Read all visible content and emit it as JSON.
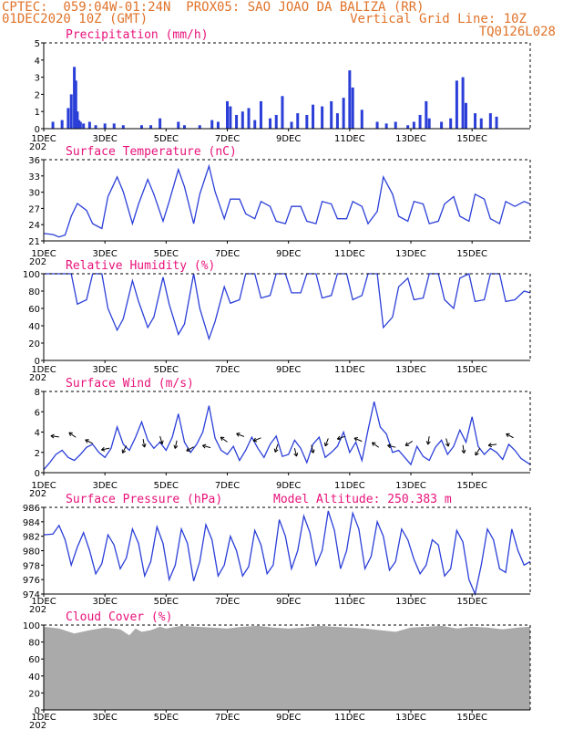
{
  "header": {
    "line1": "CPTEC:  059:04W-01:24N  PROX05: SAO JOAO DA BALIZA (RR)",
    "line2": "01DEC2020 10Z (GMT)",
    "grid_note": "Vertical Grid Line: 10Z",
    "code": "TQ0126L028"
  },
  "x_axis": {
    "days": 15.9,
    "ticks": [
      {
        "day": 0,
        "label": "1DEC"
      },
      {
        "day": 2,
        "label": "3DEC"
      },
      {
        "day": 4,
        "label": "5DEC"
      },
      {
        "day": 6,
        "label": "7DEC"
      },
      {
        "day": 8,
        "label": "9DEC"
      },
      {
        "day": 10,
        "label": "11DEC"
      },
      {
        "day": 12,
        "label": "13DEC"
      },
      {
        "day": 14,
        "label": "15DEC"
      }
    ],
    "year_fragment": "202"
  },
  "panels": {
    "precip": {
      "title": "Precipitation (mm/h)",
      "yticks": [
        "0",
        "1",
        "2",
        "3",
        "4",
        "5"
      ]
    },
    "temp": {
      "title": "Surface Temperature (nC)",
      "yticks": [
        "21",
        "24",
        "27",
        "30",
        "33",
        "36"
      ]
    },
    "rh": {
      "title": "Relative Humidity (%)",
      "yticks": [
        "0",
        "20",
        "40",
        "60",
        "80",
        "100"
      ]
    },
    "wind": {
      "title": "Surface Wind (m/s)",
      "yticks": [
        "0",
        "2",
        "4",
        "6",
        "8"
      ]
    },
    "pres": {
      "title": "Surface Pressure (hPa)",
      "altitude": "Model Altitude: 250.383 m",
      "yticks": [
        "974",
        "976",
        "978",
        "980",
        "982",
        "984",
        "986"
      ]
    },
    "cloud": {
      "title": "Cloud Cover (%)",
      "yticks": [
        "0",
        "20",
        "40",
        "60",
        "80",
        "100"
      ]
    }
  },
  "chart_data": [
    {
      "type": "bar",
      "title": "Precipitation (mm/h)",
      "ylim": [
        0,
        5
      ],
      "x_days": [
        0.3,
        0.6,
        0.8,
        0.9,
        1.0,
        1.05,
        1.1,
        1.15,
        1.2,
        1.3,
        1.5,
        1.7,
        2.0,
        2.3,
        2.6,
        3.2,
        3.5,
        3.8,
        4.4,
        4.6,
        5.1,
        5.5,
        5.7,
        6.0,
        6.1,
        6.3,
        6.5,
        6.7,
        6.9,
        7.1,
        7.4,
        7.6,
        7.8,
        8.1,
        8.3,
        8.6,
        8.8,
        9.1,
        9.4,
        9.6,
        9.8,
        10.0,
        10.1,
        10.4,
        10.9,
        11.2,
        11.5,
        11.9,
        12.1,
        12.3,
        12.5,
        12.6,
        13.0,
        13.3,
        13.5,
        13.7,
        13.8,
        14.1,
        14.3,
        14.6,
        14.8
      ],
      "values": [
        0.4,
        0.5,
        1.2,
        2.0,
        3.6,
        2.8,
        1.0,
        0.5,
        0.4,
        0.3,
        0.4,
        0.2,
        0.3,
        0.3,
        0.2,
        0.2,
        0.2,
        0.6,
        0.4,
        0.2,
        0.2,
        0.5,
        0.4,
        1.6,
        1.3,
        0.8,
        1.0,
        1.2,
        0.5,
        1.6,
        0.6,
        0.8,
        1.9,
        0.4,
        0.9,
        0.8,
        1.4,
        1.3,
        1.6,
        0.9,
        1.8,
        3.4,
        2.4,
        1.1,
        0.4,
        0.3,
        0.4,
        0.2,
        0.4,
        0.8,
        1.6,
        0.6,
        0.4,
        0.6,
        2.8,
        3.0,
        1.5,
        0.9,
        0.6,
        0.9,
        0.7
      ]
    },
    {
      "type": "line",
      "title": "Surface Temperature (nC)",
      "ylim": [
        20,
        36.5
      ],
      "x_days": [
        0,
        0.3,
        0.5,
        0.7,
        0.9,
        1.1,
        1.4,
        1.6,
        1.9,
        2.1,
        2.4,
        2.6,
        2.9,
        3.1,
        3.4,
        3.6,
        3.9,
        4.1,
        4.4,
        4.6,
        4.9,
        5.1,
        5.4,
        5.6,
        5.9,
        6.1,
        6.4,
        6.6,
        6.9,
        7.1,
        7.4,
        7.6,
        7.9,
        8.1,
        8.4,
        8.6,
        8.9,
        9.1,
        9.4,
        9.6,
        9.9,
        10.1,
        10.4,
        10.6,
        10.9,
        11.1,
        11.4,
        11.6,
        11.9,
        12.1,
        12.4,
        12.6,
        12.9,
        13.1,
        13.4,
        13.6,
        13.9,
        14.1,
        14.4,
        14.6,
        14.9,
        15.1,
        15.4,
        15.7,
        15.9
      ],
      "values": [
        21.5,
        21.3,
        20.8,
        21.2,
        25.0,
        27.6,
        26.2,
        23.5,
        22.5,
        29.0,
        33.0,
        30.0,
        23.5,
        27.5,
        32.5,
        29.5,
        24.0,
        28.0,
        34.5,
        31.0,
        23.5,
        29.5,
        35.2,
        30.0,
        24.5,
        28.5,
        28.5,
        25.5,
        24.5,
        28.0,
        27.0,
        24.0,
        23.5,
        27.0,
        27.0,
        24.0,
        23.5,
        28.0,
        27.5,
        24.5,
        24.5,
        28.0,
        27.0,
        23.5,
        26.0,
        33.0,
        29.5,
        25.0,
        24.0,
        28.0,
        27.5,
        23.5,
        24.0,
        27.5,
        29.0,
        25.0,
        24.0,
        29.5,
        28.5,
        24.5,
        23.5,
        28.0,
        27.0,
        28.0,
        27.5
      ]
    },
    {
      "type": "line",
      "title": "Relative Humidity (%)",
      "ylim": [
        0,
        100
      ],
      "x_days": [
        0,
        0.3,
        0.5,
        0.7,
        0.9,
        1.1,
        1.4,
        1.6,
        1.9,
        2.1,
        2.4,
        2.6,
        2.9,
        3.1,
        3.4,
        3.6,
        3.9,
        4.1,
        4.4,
        4.6,
        4.9,
        5.1,
        5.4,
        5.6,
        5.9,
        6.1,
        6.4,
        6.6,
        6.9,
        7.1,
        7.4,
        7.6,
        7.9,
        8.1,
        8.4,
        8.6,
        8.9,
        9.1,
        9.4,
        9.6,
        9.9,
        10.1,
        10.4,
        10.6,
        10.9,
        11.1,
        11.4,
        11.6,
        11.9,
        12.1,
        12.4,
        12.6,
        12.9,
        13.1,
        13.4,
        13.6,
        13.9,
        14.1,
        14.4,
        14.6,
        14.9,
        15.1,
        15.4,
        15.7,
        15.9
      ],
      "values": [
        100,
        100,
        100,
        100,
        100,
        65,
        70,
        100,
        100,
        60,
        35,
        48,
        92,
        68,
        38,
        50,
        96,
        65,
        30,
        42,
        100,
        60,
        25,
        45,
        85,
        66,
        70,
        100,
        100,
        72,
        75,
        100,
        100,
        78,
        78,
        100,
        100,
        72,
        75,
        100,
        100,
        70,
        75,
        100,
        100,
        38,
        50,
        85,
        95,
        70,
        72,
        100,
        100,
        70,
        60,
        95,
        100,
        68,
        70,
        100,
        100,
        68,
        70,
        80,
        78
      ]
    },
    {
      "type": "line",
      "title": "Surface Wind (m/s)",
      "ylim": [
        0,
        8
      ],
      "x_days": [
        0,
        0.2,
        0.4,
        0.6,
        0.8,
        1.0,
        1.2,
        1.4,
        1.6,
        1.8,
        2.0,
        2.2,
        2.4,
        2.6,
        2.8,
        3.0,
        3.2,
        3.4,
        3.6,
        3.8,
        4.0,
        4.2,
        4.4,
        4.6,
        4.8,
        5.0,
        5.2,
        5.4,
        5.6,
        5.8,
        6.0,
        6.2,
        6.4,
        6.6,
        6.8,
        7.0,
        7.2,
        7.4,
        7.6,
        7.8,
        8.0,
        8.2,
        8.4,
        8.6,
        8.8,
        9.0,
        9.2,
        9.4,
        9.6,
        9.8,
        10.0,
        10.2,
        10.4,
        10.6,
        10.8,
        11.0,
        11.2,
        11.4,
        11.6,
        11.8,
        12.0,
        12.2,
        12.4,
        12.6,
        12.8,
        13.0,
        13.2,
        13.4,
        13.6,
        13.8,
        14.0,
        14.2,
        14.4,
        14.6,
        14.8,
        15.0,
        15.2,
        15.4,
        15.6,
        15.9
      ],
      "values": [
        0.3,
        1.0,
        1.8,
        2.2,
        1.5,
        1.2,
        1.8,
        2.5,
        2.8,
        2.0,
        1.5,
        2.4,
        4.5,
        2.8,
        2.2,
        3.5,
        5.0,
        3.2,
        2.4,
        3.0,
        2.2,
        3.5,
        5.8,
        3.0,
        2.0,
        2.8,
        4.0,
        6.6,
        3.4,
        2.2,
        1.8,
        2.6,
        1.2,
        2.2,
        3.5,
        2.4,
        1.5,
        2.8,
        3.6,
        1.6,
        1.8,
        3.2,
        2.4,
        1.0,
        2.8,
        3.5,
        1.5,
        2.0,
        2.6,
        4.0,
        2.0,
        3.0,
        1.2,
        4.2,
        7.0,
        4.5,
        3.8,
        2.0,
        2.2,
        1.5,
        0.8,
        2.6,
        1.6,
        1.2,
        2.5,
        3.2,
        1.8,
        2.6,
        4.2,
        3.0,
        5.5,
        2.6,
        1.8,
        2.4,
        2.0,
        1.3,
        2.8,
        2.2,
        1.4,
        0.8
      ]
    },
    {
      "type": "line",
      "title": "Surface Pressure (hPa)",
      "ylim": [
        974,
        986
      ],
      "x_days": [
        0,
        0.3,
        0.5,
        0.7,
        0.9,
        1.1,
        1.3,
        1.5,
        1.7,
        1.9,
        2.1,
        2.3,
        2.5,
        2.7,
        2.9,
        3.1,
        3.3,
        3.5,
        3.7,
        3.9,
        4.1,
        4.3,
        4.5,
        4.7,
        4.9,
        5.1,
        5.3,
        5.5,
        5.7,
        5.9,
        6.1,
        6.3,
        6.5,
        6.7,
        6.9,
        7.1,
        7.3,
        7.5,
        7.7,
        7.9,
        8.1,
        8.3,
        8.5,
        8.7,
        8.9,
        9.1,
        9.3,
        9.5,
        9.7,
        9.9,
        10.1,
        10.3,
        10.5,
        10.7,
        10.9,
        11.1,
        11.3,
        11.5,
        11.7,
        11.9,
        12.1,
        12.3,
        12.5,
        12.7,
        12.9,
        13.1,
        13.3,
        13.5,
        13.7,
        13.9,
        14.1,
        14.3,
        14.5,
        14.7,
        14.9,
        15.1,
        15.3,
        15.5,
        15.7,
        15.9
      ],
      "values": [
        982.2,
        982.3,
        983.5,
        981.5,
        978.0,
        980.5,
        982.5,
        980.0,
        976.8,
        978.2,
        982.2,
        980.8,
        977.5,
        979.0,
        983.0,
        981.0,
        976.5,
        978.5,
        983.3,
        981.0,
        976.0,
        978.0,
        983.0,
        981.0,
        975.8,
        978.5,
        983.6,
        981.5,
        976.5,
        978.0,
        982.0,
        980.0,
        976.5,
        977.8,
        982.8,
        980.8,
        976.8,
        978.0,
        984.3,
        982.0,
        977.5,
        980.0,
        984.8,
        982.5,
        978.0,
        980.0,
        985.5,
        982.8,
        977.5,
        980.0,
        985.2,
        983.0,
        977.5,
        979.2,
        984.0,
        982.0,
        977.3,
        978.5,
        983.0,
        981.5,
        978.8,
        976.8,
        978.0,
        981.5,
        980.8,
        976.5,
        977.5,
        982.8,
        981.2,
        976.0,
        974.0,
        978.0,
        983.0,
        981.5,
        977.5,
        977.0,
        983.0,
        980.0,
        978.0,
        978.5
      ]
    },
    {
      "type": "area",
      "title": "Cloud Cover (%)",
      "ylim": [
        0,
        100
      ],
      "x_days": [
        0,
        0.5,
        1.0,
        1.5,
        2.0,
        2.5,
        2.8,
        3.0,
        3.2,
        3.5,
        3.8,
        4.0,
        4.5,
        5.0,
        5.5,
        6.0,
        6.5,
        7.0,
        7.5,
        8.0,
        8.5,
        9.0,
        9.5,
        10.0,
        10.5,
        11.0,
        11.5,
        12.0,
        12.5,
        13.0,
        13.5,
        14.0,
        14.5,
        15.0,
        15.5,
        15.9
      ],
      "values": [
        98,
        96,
        90,
        94,
        97,
        95,
        88,
        96,
        92,
        94,
        98,
        96,
        99,
        98,
        97,
        96,
        98,
        99,
        97,
        96,
        97,
        99,
        98,
        97,
        96,
        94,
        92,
        97,
        98,
        99,
        96,
        98,
        97,
        95,
        97,
        98
      ]
    }
  ]
}
